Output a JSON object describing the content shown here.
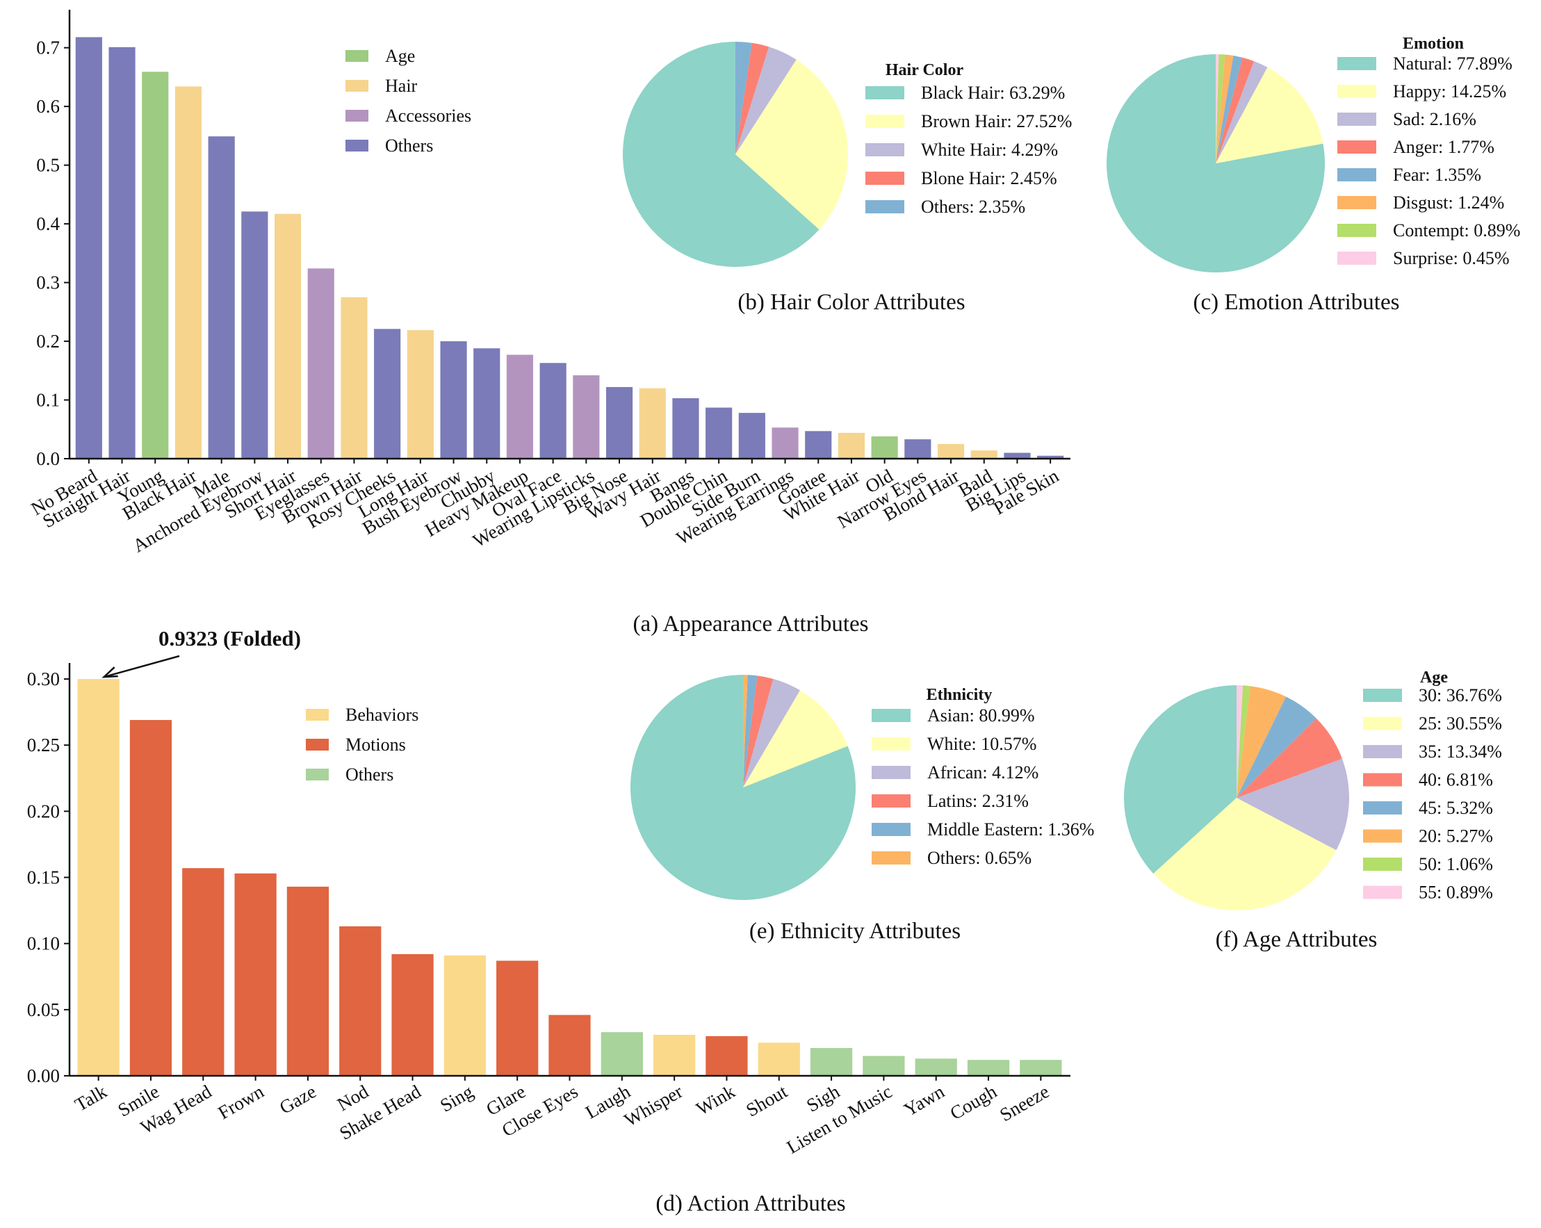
{
  "chart_data": [
    {
      "id": "appearance",
      "type": "bar",
      "caption": "(a) Appearance Attributes",
      "ylim": [
        0,
        0.76
      ],
      "yticks": [
        "0.0",
        "0.1",
        "0.2",
        "0.3",
        "0.4",
        "0.5",
        "0.6",
        "0.7"
      ],
      "categories": [
        "No Beard",
        "Straight Hair",
        "Young",
        "Black Hair",
        "Male",
        "Anchored Eyebrow",
        "Short Hair",
        "Eyeglasses",
        "Brown Hair",
        "Rosy Cheeks",
        "Long Hair",
        "Bush Eyebrow",
        "Chubby",
        "Heavy Makeup",
        "Oval Face",
        "Wearing Lipsticks",
        "Big Nose",
        "Wavy Hair",
        "Bangs",
        "Double Chin",
        "Side Burn",
        "Wearing Earrings",
        "Goatee",
        "White Hair",
        "Old",
        "Narrow Eyes",
        "Blond Hair",
        "Bald",
        "Big Lips",
        "Pale Skin"
      ],
      "values": [
        0.718,
        0.701,
        0.659,
        0.634,
        0.549,
        0.421,
        0.417,
        0.324,
        0.275,
        0.221,
        0.219,
        0.2,
        0.188,
        0.177,
        0.163,
        0.142,
        0.122,
        0.12,
        0.103,
        0.087,
        0.078,
        0.053,
        0.047,
        0.044,
        0.038,
        0.033,
        0.025,
        0.014,
        0.01,
        0.005
      ],
      "groups": [
        "Others",
        "Others",
        "Age",
        "Hair",
        "Others",
        "Others",
        "Hair",
        "Accessories",
        "Hair",
        "Others",
        "Hair",
        "Others",
        "Others",
        "Accessories",
        "Others",
        "Accessories",
        "Others",
        "Hair",
        "Others",
        "Others",
        "Others",
        "Accessories",
        "Others",
        "Hair",
        "Age",
        "Others",
        "Hair",
        "Hair",
        "Others",
        "Others"
      ],
      "legend": [
        {
          "label": "Age",
          "color": "#9dcb82"
        },
        {
          "label": "Hair",
          "color": "#f6d48e"
        },
        {
          "label": "Accessories",
          "color": "#b394bf"
        },
        {
          "label": "Others",
          "color": "#7a7bb8"
        }
      ]
    },
    {
      "id": "hair_color",
      "type": "pie",
      "caption": "(b) Hair Color Attributes",
      "legend_title": "Hair Color",
      "slices": [
        {
          "label": "Black Hair: 63.29%",
          "value": 63.29,
          "color": "#8dd3c7"
        },
        {
          "label": "Brown Hair: 27.52%",
          "value": 27.52,
          "color": "#ffffb3"
        },
        {
          "label": "White Hair: 4.29%",
          "value": 4.29,
          "color": "#bebada"
        },
        {
          "label": "Blone Hair: 2.45%",
          "value": 2.45,
          "color": "#fb8072"
        },
        {
          "label": "Others: 2.35%",
          "value": 2.35,
          "color": "#80b1d3"
        }
      ]
    },
    {
      "id": "emotion",
      "type": "pie",
      "caption": "(c) Emotion Attributes",
      "legend_title": "Emotion",
      "slices": [
        {
          "label": "Natural: 77.89%",
          "value": 77.89,
          "color": "#8dd3c7"
        },
        {
          "label": "Happy: 14.25%",
          "value": 14.25,
          "color": "#ffffb3"
        },
        {
          "label": "Sad: 2.16%",
          "value": 2.16,
          "color": "#bebada"
        },
        {
          "label": "Anger: 1.77%",
          "value": 1.77,
          "color": "#fb8072"
        },
        {
          "label": "Fear: 1.35%",
          "value": 1.35,
          "color": "#80b1d3"
        },
        {
          "label": "Disgust: 1.24%",
          "value": 1.24,
          "color": "#fdb462"
        },
        {
          "label": "Contempt: 0.89%",
          "value": 0.89,
          "color": "#b3de69"
        },
        {
          "label": "Surprise: 0.45%",
          "value": 0.45,
          "color": "#fccde5"
        }
      ]
    },
    {
      "id": "action",
      "type": "bar",
      "caption": "(d) Action Attributes",
      "ylim": [
        0,
        0.31
      ],
      "yticks": [
        "0.00",
        "0.05",
        "0.10",
        "0.15",
        "0.20",
        "0.25",
        "0.30"
      ],
      "categories": [
        "Talk",
        "Smile",
        "Wag Head",
        "Frown",
        "Gaze",
        "Nod",
        "Shake Head",
        "Sing",
        "Glare",
        "Close Eyes",
        "Laugh",
        "Whisper",
        "Wink",
        "Shout",
        "Sigh",
        "Listen to Music",
        "Yawn",
        "Cough",
        "Sneeze"
      ],
      "values": [
        0.3,
        0.269,
        0.157,
        0.153,
        0.143,
        0.113,
        0.092,
        0.091,
        0.087,
        0.046,
        0.033,
        0.031,
        0.03,
        0.025,
        0.021,
        0.015,
        0.013,
        0.012,
        0.012
      ],
      "groups": [
        "Behaviors",
        "Motions",
        "Motions",
        "Motions",
        "Motions",
        "Motions",
        "Motions",
        "Behaviors",
        "Motions",
        "Motions",
        "Others",
        "Behaviors",
        "Motions",
        "Behaviors",
        "Others",
        "Others",
        "Others",
        "Others",
        "Others"
      ],
      "annotation": "0.9323 (Folded)",
      "legend": [
        {
          "label": "Behaviors",
          "color": "#fbd98a"
        },
        {
          "label": "Motions",
          "color": "#e06540"
        },
        {
          "label": "Others",
          "color": "#a8d39a"
        }
      ]
    },
    {
      "id": "ethnicity",
      "type": "pie",
      "caption": "(e) Ethnicity Attributes",
      "legend_title": "Ethnicity",
      "slices": [
        {
          "label": "Asian: 80.99%",
          "value": 80.99,
          "color": "#8dd3c7"
        },
        {
          "label": "White: 10.57%",
          "value": 10.57,
          "color": "#ffffb3"
        },
        {
          "label": "African: 4.12%",
          "value": 4.12,
          "color": "#bebada"
        },
        {
          "label": "Latins: 2.31%",
          "value": 2.31,
          "color": "#fb8072"
        },
        {
          "label": "Middle Eastern: 1.36%",
          "value": 1.36,
          "color": "#80b1d3"
        },
        {
          "label": "Others: 0.65%",
          "value": 0.65,
          "color": "#fdb462"
        }
      ]
    },
    {
      "id": "age",
      "type": "pie",
      "caption": "(f) Age Attributes",
      "legend_title": "Age",
      "slices": [
        {
          "label": "30: 36.76%",
          "value": 36.76,
          "color": "#8dd3c7"
        },
        {
          "label": "25: 30.55%",
          "value": 30.55,
          "color": "#ffffb3"
        },
        {
          "label": "35: 13.34%",
          "value": 13.34,
          "color": "#bebada"
        },
        {
          "label": "40: 6.81%",
          "value": 6.81,
          "color": "#fb8072"
        },
        {
          "label": "45: 5.32%",
          "value": 5.32,
          "color": "#80b1d3"
        },
        {
          "label": "20: 5.27%",
          "value": 5.27,
          "color": "#fdb462"
        },
        {
          "label": "50: 1.06%",
          "value": 1.06,
          "color": "#b3de69"
        },
        {
          "label": "55: 0.89%",
          "value": 0.89,
          "color": "#fccde5"
        }
      ]
    }
  ]
}
